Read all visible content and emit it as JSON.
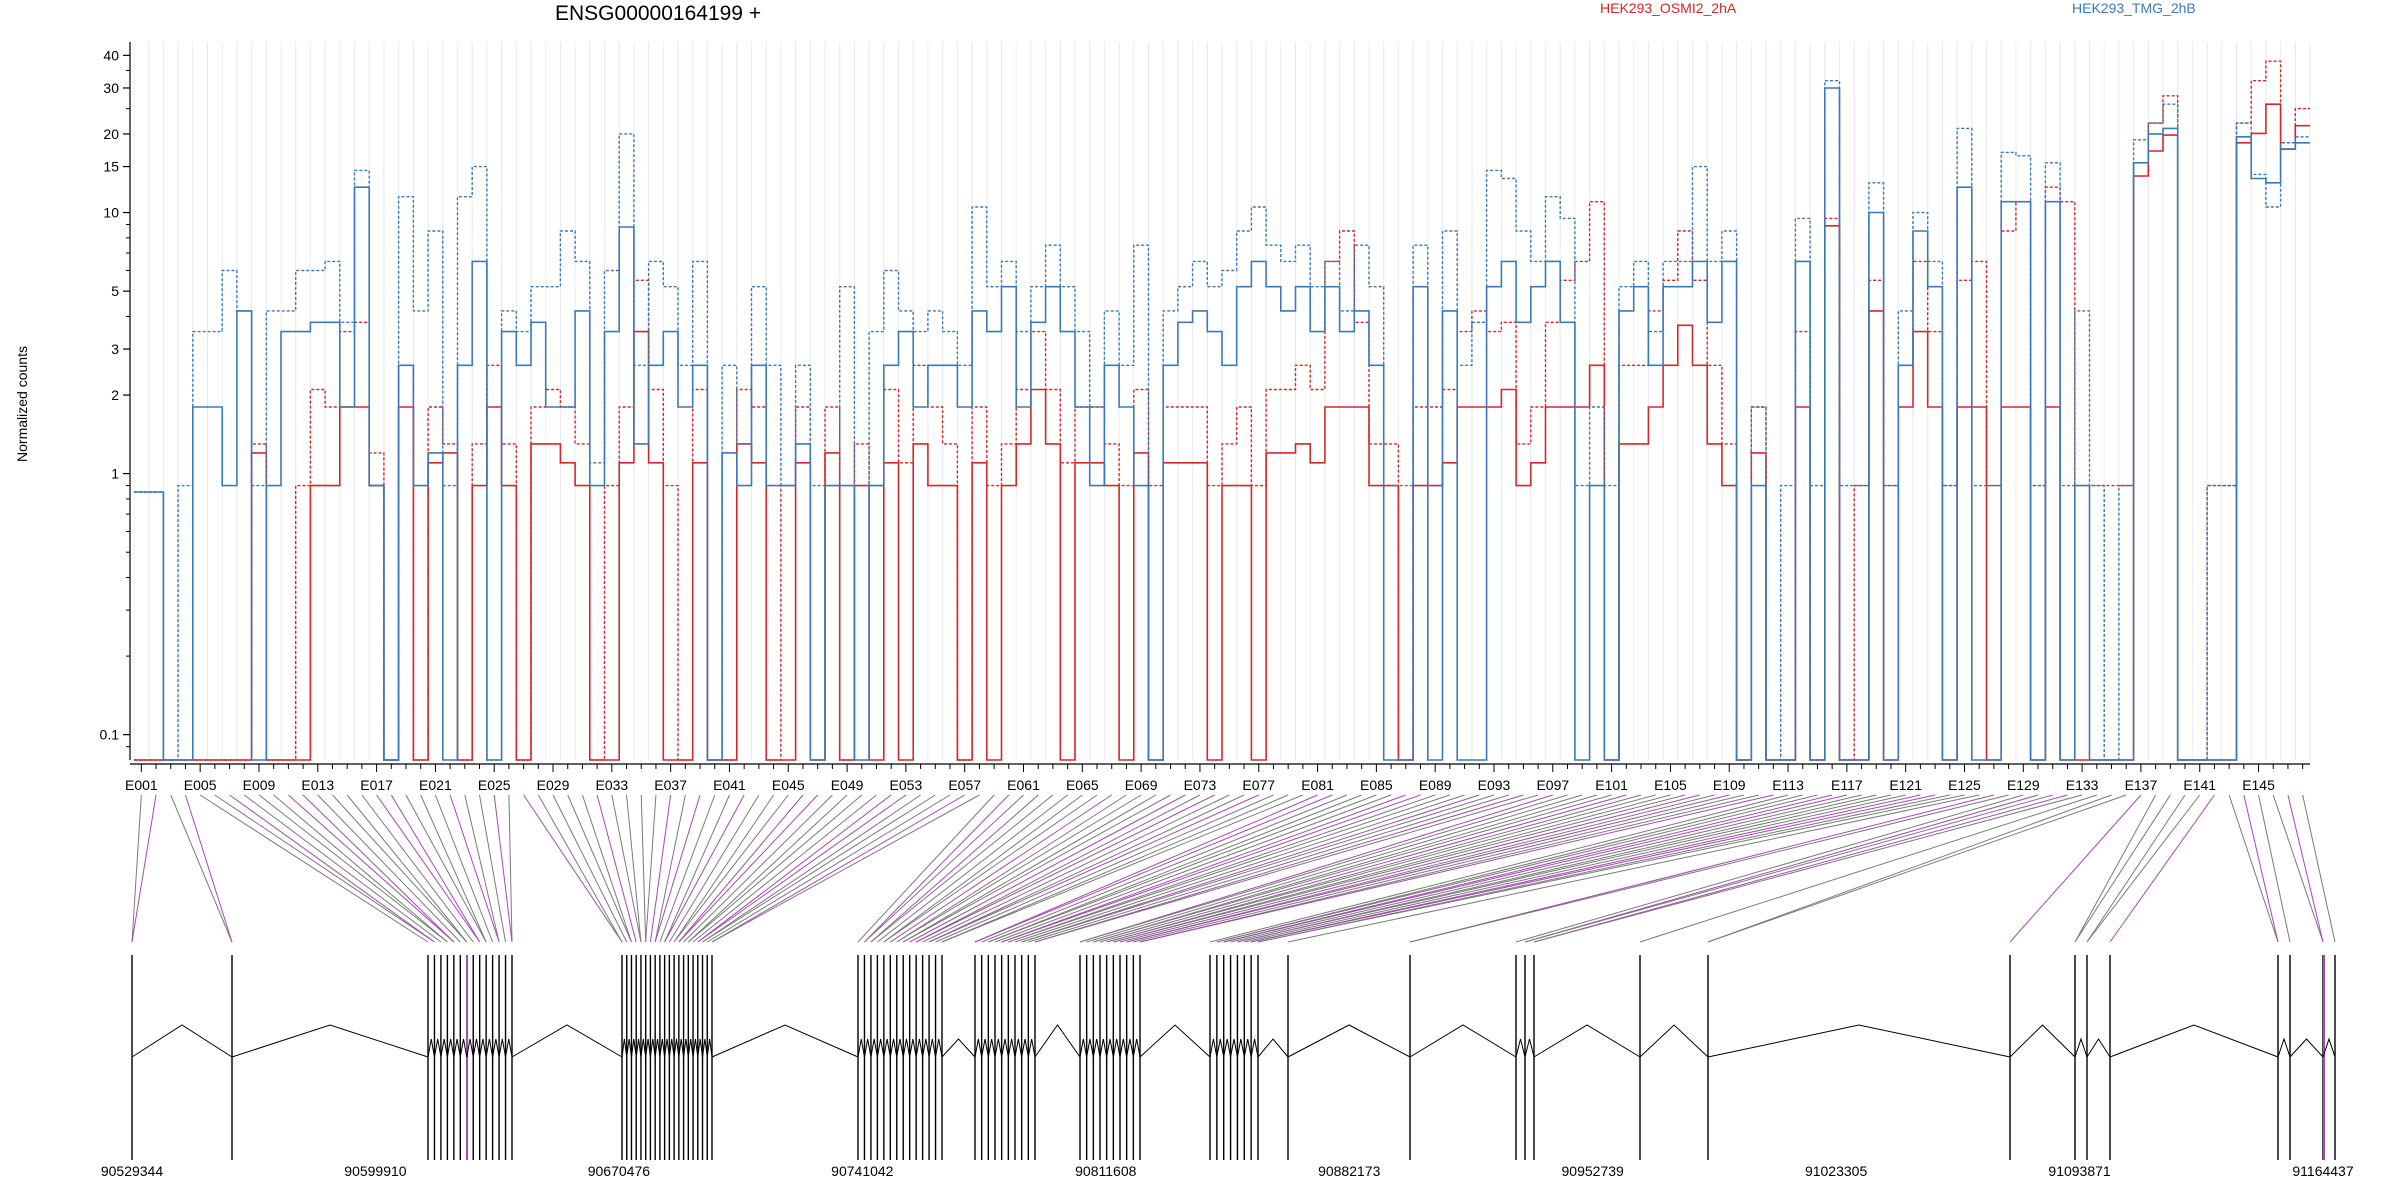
{
  "header": {
    "gene_title": "ENSG00000164199 +",
    "legend": [
      {
        "label": "HEK293_OSMI2_2hA",
        "color": "#d62728"
      },
      {
        "label": "HEK293_TMG_2hB",
        "color": "#3a7ab8"
      }
    ]
  },
  "chart_data": [
    {
      "type": "line",
      "title": "ENSG00000164199 +",
      "ylabel": "Normalized counts",
      "yscale": "log",
      "ylim": [
        0.08,
        45
      ],
      "yticks": [
        0.1,
        1,
        2,
        3,
        5,
        10,
        15,
        20,
        30,
        40
      ],
      "ytick_labels": [
        "0.1",
        "1",
        "2",
        "3",
        "5",
        "10",
        "15",
        "20",
        "30",
        "40"
      ],
      "x_categories_count": 148,
      "x_tick_labels": [
        "E001",
        "E005",
        "E009",
        "E013",
        "E017",
        "E021",
        "E025",
        "E029",
        "E033",
        "E037",
        "E041",
        "E045",
        "E049",
        "E053",
        "E057",
        "E061",
        "E065",
        "E069",
        "E073",
        "E077",
        "E081",
        "E085",
        "E089",
        "E093",
        "E097",
        "E101",
        "E105",
        "E109",
        "E113",
        "E117",
        "E121",
        "E125",
        "E129",
        "E133",
        "E137",
        "E141",
        "E145"
      ],
      "series": [
        {
          "name": "HEK293_OSMI2_2hA",
          "color": "#d62728",
          "style": "solid",
          "values": [
            0.08,
            0.08,
            0.08,
            0.08,
            0.08,
            0.08,
            0.08,
            0.08,
            1.2,
            0.08,
            0.08,
            0.08,
            0.9,
            0.9,
            1.8,
            1.8,
            0.9,
            0.08,
            1.8,
            0.08,
            1.1,
            1.2,
            0.08,
            0.9,
            1.8,
            0.9,
            0.08,
            1.3,
            1.3,
            1.1,
            0.9,
            0.08,
            0.08,
            1.1,
            3.5,
            1.1,
            0.08,
            0.08,
            1.1,
            0.08,
            0.08,
            1.3,
            1.1,
            0.08,
            0.08,
            1.1,
            0.08,
            1.2,
            0.08,
            0.9,
            0.08,
            1.1,
            0.08,
            1.3,
            0.9,
            0.9,
            0.08,
            1.1,
            0.08,
            0.9,
            1.3,
            2.1,
            1.3,
            0.08,
            1.1,
            1.1,
            0.9,
            0.08,
            1.2,
            0.08,
            1.1,
            1.1,
            1.1,
            0.08,
            0.9,
            0.9,
            0.08,
            1.2,
            1.2,
            1.3,
            1.1,
            1.8,
            1.8,
            1.8,
            0.9,
            0.9,
            0.08,
            0.9,
            0.9,
            1.1,
            1.8,
            1.8,
            1.8,
            2.1,
            0.9,
            1.1,
            1.8,
            1.8,
            1.8,
            2.6,
            0.08,
            1.3,
            1.3,
            1.8,
            2.6,
            3.7,
            2.6,
            1.3,
            0.9,
            0.08,
            1.2,
            0.08,
            0.08,
            1.8,
            0.08,
            8.9,
            0.08,
            0.08,
            4.2,
            0.08,
            1.8,
            3.5,
            1.8,
            0.08,
            1.8,
            1.8,
            0.08,
            1.8,
            1.8,
            0.08,
            1.8,
            0.08,
            0.08,
            0.08,
            0.08,
            0.08,
            13.8,
            17.2,
            19.8,
            0.08,
            0.08,
            0.08,
            0.08,
            18.5,
            20.1,
            26.0,
            17.5,
            21.5
          ]
        },
        {
          "name": "HEK293_OSMI2_2hA",
          "color": "#d62728",
          "style": "dashed",
          "values": [
            0.08,
            0.08,
            0.08,
            0.08,
            0.08,
            0.08,
            0.08,
            0.08,
            1.3,
            0.08,
            0.08,
            0.9,
            2.1,
            1.8,
            3.5,
            3.8,
            1.2,
            0.08,
            2.6,
            0.08,
            1.8,
            1.3,
            0.08,
            1.3,
            2.6,
            1.3,
            0.08,
            1.8,
            2.1,
            1.8,
            1.3,
            0.08,
            0.9,
            1.8,
            5.5,
            2.1,
            0.9,
            0.08,
            2.1,
            0.08,
            0.08,
            2.1,
            1.8,
            0.08,
            0.9,
            1.8,
            0.08,
            1.8,
            0.08,
            1.3,
            0.9,
            2.1,
            1.1,
            2.6,
            1.8,
            1.3,
            0.08,
            1.8,
            0.9,
            1.3,
            2.1,
            3.5,
            2.1,
            1.1,
            1.8,
            1.8,
            1.3,
            0.9,
            2.1,
            0.9,
            1.8,
            1.8,
            1.8,
            0.9,
            1.3,
            1.8,
            0.9,
            2.1,
            2.1,
            2.6,
            2.1,
            6.5,
            8.5,
            3.8,
            1.3,
            1.3,
            0.08,
            1.8,
            1.8,
            2.1,
            3.5,
            4.2,
            3.5,
            3.8,
            1.3,
            1.8,
            3.8,
            5.5,
            6.5,
            11.0,
            0.08,
            2.6,
            2.6,
            4.2,
            5.5,
            8.5,
            5.5,
            2.6,
            1.3,
            0.08,
            1.8,
            0.08,
            0.08,
            3.5,
            0.08,
            9.5,
            0.08,
            0.9,
            5.5,
            0.9,
            2.6,
            6.5,
            3.5,
            0.9,
            5.5,
            6.5,
            0.9,
            8.5,
            11.0,
            0.9,
            12.5,
            11.0,
            0.9,
            0.9,
            0.9,
            0.9,
            15.5,
            22.0,
            28.0,
            0.08,
            0.08,
            0.9,
            0.9,
            22.0,
            32.0,
            38.0,
            18.5,
            25.0
          ]
        },
        {
          "name": "HEK293_TMG_2hB",
          "color": "#3a7ab8",
          "style": "solid",
          "values": [
            0.85,
            0.85,
            0.08,
            0.08,
            1.8,
            1.8,
            0.9,
            4.2,
            0.08,
            0.9,
            3.5,
            3.5,
            3.8,
            3.8,
            1.8,
            12.5,
            0.9,
            0.08,
            2.6,
            0.9,
            1.2,
            0.08,
            2.6,
            6.5,
            0.08,
            3.5,
            2.6,
            3.8,
            1.8,
            1.8,
            4.2,
            0.9,
            3.5,
            8.8,
            1.3,
            2.6,
            3.5,
            1.8,
            2.6,
            0.08,
            1.2,
            0.9,
            2.6,
            0.9,
            0.9,
            1.3,
            0.08,
            0.9,
            0.9,
            0.08,
            0.9,
            2.6,
            3.5,
            1.8,
            2.6,
            2.6,
            1.8,
            4.2,
            3.5,
            5.2,
            1.8,
            3.8,
            5.2,
            3.5,
            1.8,
            0.9,
            2.6,
            1.8,
            0.9,
            0.08,
            2.6,
            3.8,
            4.2,
            3.5,
            2.6,
            5.2,
            6.5,
            5.2,
            4.2,
            5.2,
            3.5,
            5.2,
            3.5,
            4.2,
            2.6,
            0.08,
            0.08,
            5.2,
            0.08,
            4.2,
            0.08,
            0.08,
            5.2,
            6.5,
            3.8,
            5.2,
            6.5,
            3.8,
            0.08,
            0.9,
            0.08,
            4.2,
            5.2,
            2.6,
            5.2,
            5.2,
            6.5,
            3.8,
            6.5,
            0.08,
            0.9,
            0.08,
            0.08,
            6.5,
            0.08,
            30.0,
            0.08,
            0.08,
            10.0,
            0.08,
            2.6,
            8.5,
            5.2,
            0.08,
            12.5,
            0.08,
            0.08,
            11.0,
            11.0,
            0.08,
            11.0,
            0.08,
            0.9,
            0.08,
            0.08,
            0.08,
            15.5,
            20.0,
            21.0,
            0.08,
            0.08,
            0.08,
            0.08,
            19.5,
            13.5,
            13.0,
            17.5,
            18.5
          ]
        },
        {
          "name": "HEK293_TMG_2hB",
          "color": "#3a7ab8",
          "style": "dashed",
          "values": [
            0.85,
            0.85,
            0.08,
            0.9,
            3.5,
            3.5,
            6.0,
            4.2,
            0.9,
            4.2,
            4.2,
            6.0,
            6.0,
            6.5,
            3.8,
            14.5,
            0.9,
            0.08,
            11.5,
            4.2,
            8.5,
            0.9,
            11.5,
            15.0,
            0.08,
            4.2,
            3.5,
            5.2,
            5.2,
            8.5,
            6.5,
            1.1,
            6.0,
            20.0,
            2.6,
            6.5,
            5.2,
            2.6,
            6.5,
            0.08,
            2.6,
            1.3,
            5.2,
            2.6,
            0.9,
            2.6,
            0.9,
            0.9,
            5.2,
            0.9,
            3.5,
            6.0,
            4.2,
            3.5,
            4.2,
            3.5,
            2.6,
            10.5,
            5.2,
            6.5,
            3.5,
            5.2,
            7.5,
            5.2,
            3.5,
            1.8,
            4.2,
            2.6,
            7.5,
            0.08,
            4.2,
            5.2,
            6.5,
            5.2,
            6.0,
            8.5,
            10.5,
            7.5,
            6.5,
            7.5,
            5.2,
            6.5,
            4.2,
            7.5,
            5.2,
            0.9,
            0.9,
            7.5,
            0.9,
            8.5,
            2.6,
            3.8,
            14.5,
            13.5,
            8.5,
            6.5,
            11.5,
            9.5,
            0.9,
            1.8,
            0.9,
            5.2,
            6.5,
            3.5,
            6.5,
            6.5,
            15.0,
            6.5,
            8.5,
            0.08,
            1.8,
            0.08,
            0.9,
            9.5,
            0.9,
            32.0,
            0.9,
            0.9,
            13.0,
            0.9,
            4.2,
            10.0,
            6.5,
            0.9,
            21.0,
            0.9,
            0.9,
            17.0,
            16.5,
            0.9,
            15.5,
            0.9,
            4.2,
            0.9,
            0.08,
            0.9,
            19.0,
            22.0,
            26.0,
            0.08,
            0.08,
            0.9,
            0.9,
            22.0,
            14.0,
            10.5,
            18.5,
            19.5
          ]
        }
      ]
    },
    {
      "type": "diagram",
      "title": "",
      "genomic_axis_labels": [
        "90529344",
        "90599910",
        "90670476",
        "90741042",
        "90811608",
        "90882173",
        "90952739",
        "91023305",
        "91093871",
        "91164437"
      ]
    }
  ]
}
